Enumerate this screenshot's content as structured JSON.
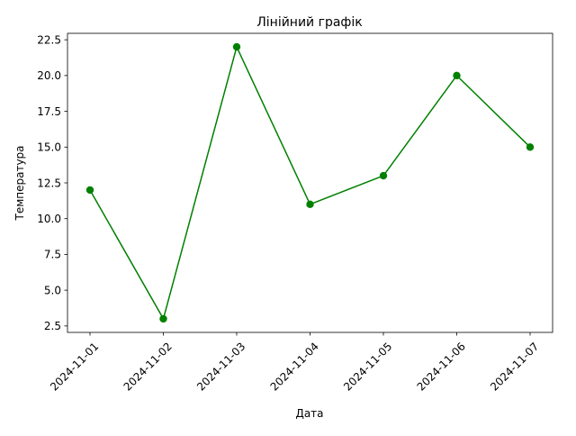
{
  "chart_data": {
    "type": "line",
    "title": "Лінійний графік",
    "xlabel": "Дата",
    "ylabel": "Температура",
    "x": [
      "2024-11-01",
      "2024-11-02",
      "2024-11-03",
      "2024-11-04",
      "2024-11-05",
      "2024-11-06",
      "2024-11-07"
    ],
    "series": [
      {
        "values": [
          12,
          3,
          22,
          11,
          13,
          20,
          15
        ],
        "color": "#008000",
        "marker": "circle"
      }
    ],
    "ylim": [
      2.05,
      22.95
    ],
    "yticks": [
      2.5,
      5.0,
      7.5,
      10.0,
      12.5,
      15.0,
      17.5,
      20.0,
      22.5
    ],
    "ytick_labels": [
      "2.5",
      "5.0",
      "7.5",
      "10.0",
      "12.5",
      "15.0",
      "17.5",
      "20.0",
      "22.5"
    ],
    "x_tick_rotation": 45,
    "grid": false,
    "legend": "none"
  }
}
